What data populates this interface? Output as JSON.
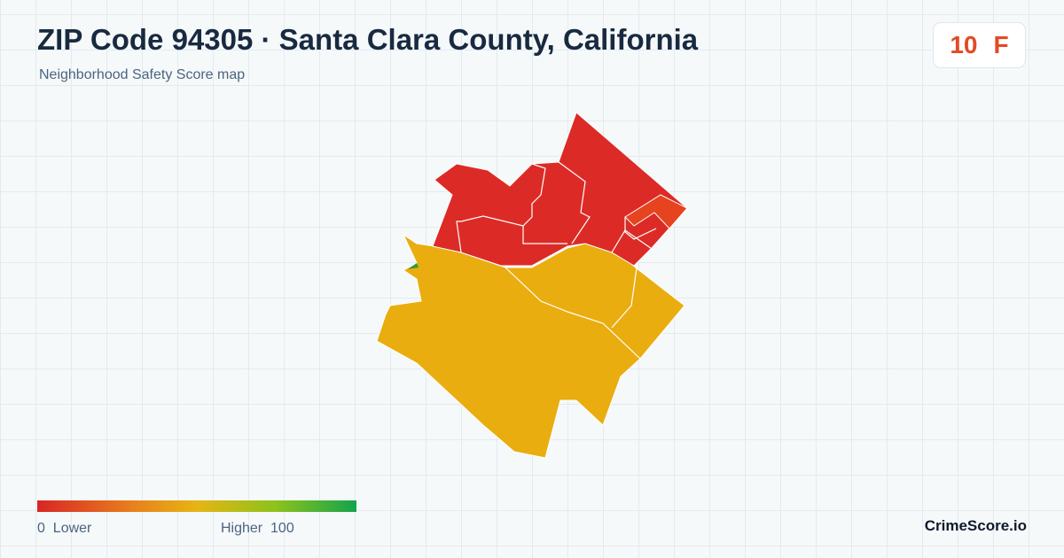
{
  "header": {
    "title": "ZIP Code 94305 · Santa Clara County, California",
    "subtitle": "Neighborhood Safety Score map"
  },
  "score": {
    "value": 10,
    "grade": "F"
  },
  "legend": {
    "min": 0,
    "min_label": "Lower",
    "max_label": "Higher",
    "max": 100
  },
  "footer": {
    "brand": "CrimeScore.io"
  }
}
